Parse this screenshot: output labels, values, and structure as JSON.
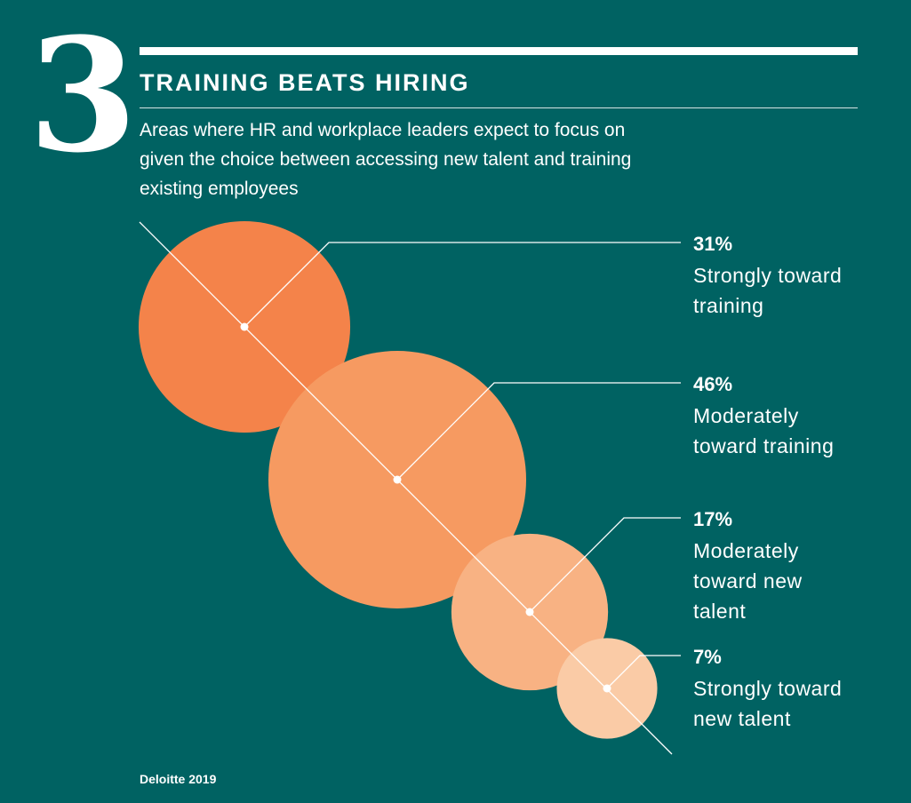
{
  "figure_number": "3",
  "source": "Deloitte 2019",
  "colors": {
    "background": "#006262",
    "bubbles": [
      "#F4834A",
      "#F69A61",
      "#F8B283",
      "#FACBA6"
    ]
  },
  "chart_data": {
    "type": "bubble",
    "title": "TRAINING BEATS HIRING",
    "subtitle": "Areas where HR and workplace leaders expect to focus on given the choice between accessing new talent and training existing employees",
    "unit": "%",
    "items": [
      {
        "value": 31,
        "value_label": "31%",
        "label_lines": [
          "Strongly toward",
          "training"
        ]
      },
      {
        "value": 46,
        "value_label": "46%",
        "label_lines": [
          "Moderately",
          "toward training"
        ]
      },
      {
        "value": 17,
        "value_label": "17%",
        "label_lines": [
          "Moderately",
          "toward new",
          "talent"
        ]
      },
      {
        "value": 7,
        "value_label": "7%",
        "label_lines": [
          "Strongly toward",
          "new talent"
        ]
      }
    ]
  }
}
